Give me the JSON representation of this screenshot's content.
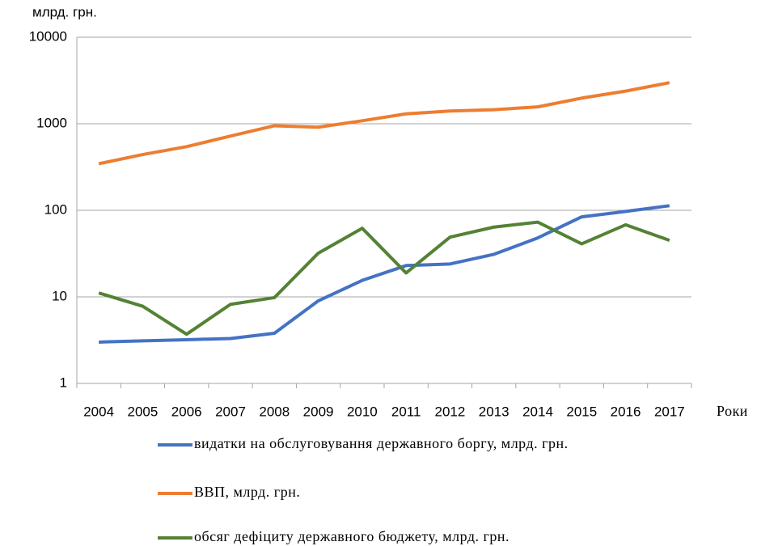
{
  "chart_data": {
    "type": "line",
    "y_label": "млрд. грн.",
    "x_label": "Роки",
    "categories": [
      "2004",
      "2005",
      "2006",
      "2007",
      "2008",
      "2009",
      "2010",
      "2011",
      "2012",
      "2013",
      "2014",
      "2015",
      "2016",
      "2017"
    ],
    "series": [
      {
        "name": "видатки на обслуговування державного боргу, млрд. грн.",
        "color": "#4472c4",
        "values": [
          3.0,
          3.1,
          3.2,
          3.3,
          3.8,
          9.0,
          15.5,
          23,
          24,
          31,
          48,
          84,
          97,
          113
        ]
      },
      {
        "name": "ВВП, млрд. грн.",
        "color": "#ed7d31",
        "values": [
          345,
          441,
          544,
          721,
          948,
          913,
          1083,
          1302,
          1405,
          1455,
          1567,
          1979,
          2383,
          2983
        ]
      },
      {
        "name": "обсяг дефіциту державного бюджету, млрд. грн.",
        "color": "#548235",
        "values": [
          11.1,
          7.8,
          3.7,
          8.2,
          9.8,
          32,
          62,
          18.9,
          49,
          64,
          73,
          41,
          68,
          45
        ]
      }
    ],
    "ylim": [
      1,
      10000
    ],
    "yticks": [
      1,
      10,
      100,
      1000,
      10000
    ],
    "y_scale": "log",
    "grid": true,
    "legend": "bottom"
  }
}
